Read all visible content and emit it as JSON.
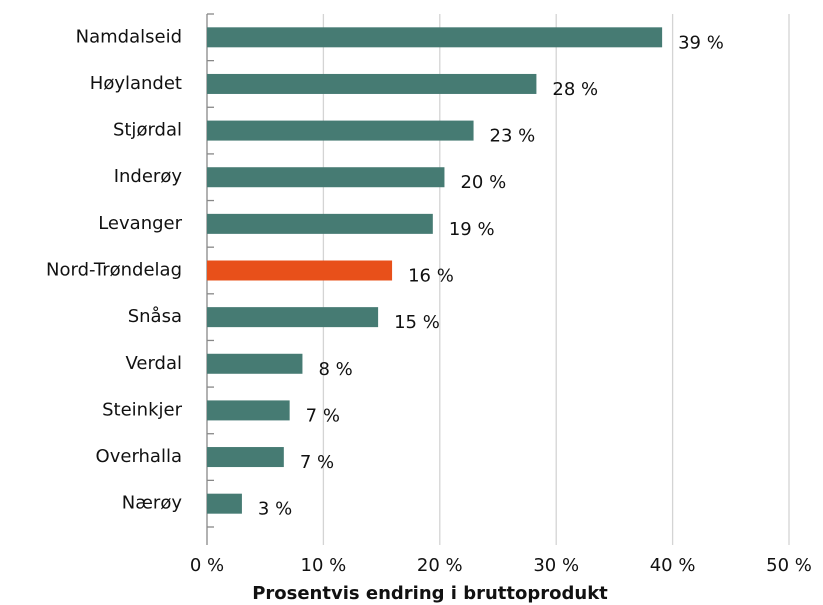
{
  "chart_data": {
    "type": "barh",
    "categories": [
      "Namdalseid",
      "Høylandet",
      "Stjørdal",
      "Inderøy",
      "Levanger",
      "Nord-Trøndelag",
      "Snåsa",
      "Verdal",
      "Steinkjer",
      "Overhalla",
      "Nærøy"
    ],
    "values": [
      39.1,
      28.3,
      22.9,
      20.4,
      19.4,
      15.9,
      14.7,
      8.2,
      7.1,
      6.6,
      3.0
    ],
    "value_labels": [
      "39 %",
      "28 %",
      "23 %",
      "20 %",
      "19 %",
      "16 %",
      "15 %",
      "8 %",
      "7 %",
      "7 %",
      "3 %"
    ],
    "colors": [
      "#467b73",
      "#467b73",
      "#467b73",
      "#467b73",
      "#467b73",
      "#e8501a",
      "#467b73",
      "#467b73",
      "#467b73",
      "#467b73",
      "#467b73"
    ],
    "xlabel": "Prosentvis endring i bruttoprodukt",
    "xlim": [
      0,
      50
    ],
    "xticks": [
      {
        "value": 0,
        "label": "0 %"
      },
      {
        "value": 10,
        "label": "10 %"
      },
      {
        "value": 20,
        "label": "20 %"
      },
      {
        "value": 30,
        "label": "30 %"
      },
      {
        "value": 40,
        "label": "40 %"
      },
      {
        "value": 50,
        "label": "50 %"
      }
    ],
    "grid": true
  }
}
